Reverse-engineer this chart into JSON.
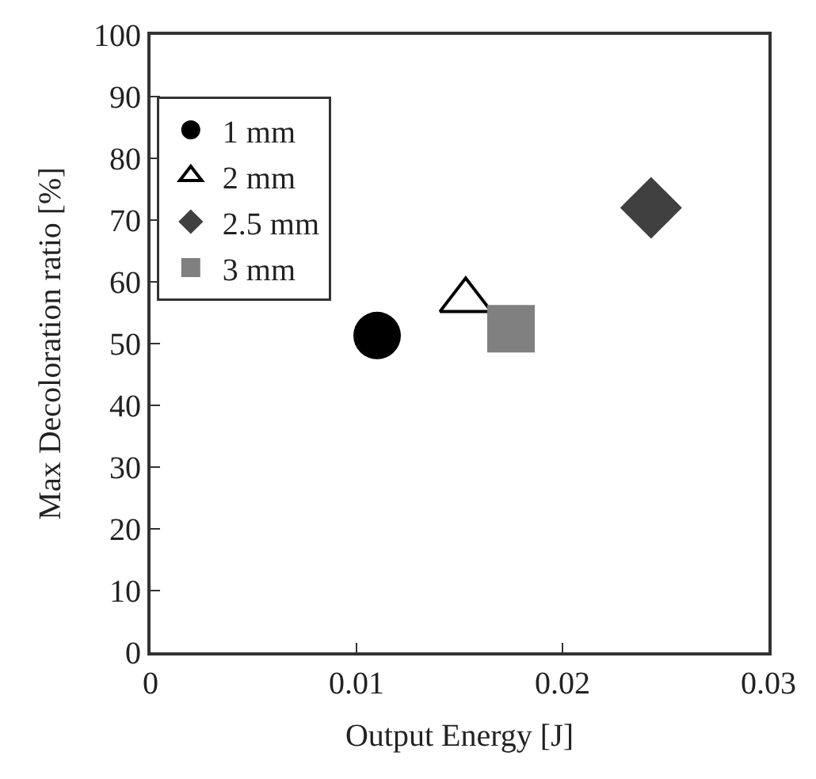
{
  "chart_data": {
    "type": "scatter",
    "xlabel": "Output Energy [J]",
    "ylabel": "Max Decoloration ratio [%]",
    "xlim": [
      0,
      0.03
    ],
    "xticks": [
      0,
      0.01,
      0.02,
      0.03
    ],
    "ylim": [
      0,
      100
    ],
    "yticks": [
      0,
      10,
      20,
      30,
      40,
      50,
      60,
      70,
      80,
      90,
      100
    ],
    "legend": "top left",
    "series": [
      {
        "name": "1 mm",
        "color": "#000000",
        "marker": "circle",
        "x": [
          0.011
        ],
        "values": [
          51.3
        ]
      },
      {
        "name": "2 mm",
        "color": "#000000",
        "marker": "triangle-open",
        "x": [
          0.0153
        ],
        "values": [
          57
        ]
      },
      {
        "name": "2.5 mm",
        "color": "#404040",
        "marker": "diamond",
        "x": [
          0.0243
        ],
        "values": [
          72
        ]
      },
      {
        "name": "3 mm",
        "color": "#808080",
        "marker": "square",
        "x": [
          0.0175
        ],
        "values": [
          52.4
        ]
      }
    ]
  }
}
